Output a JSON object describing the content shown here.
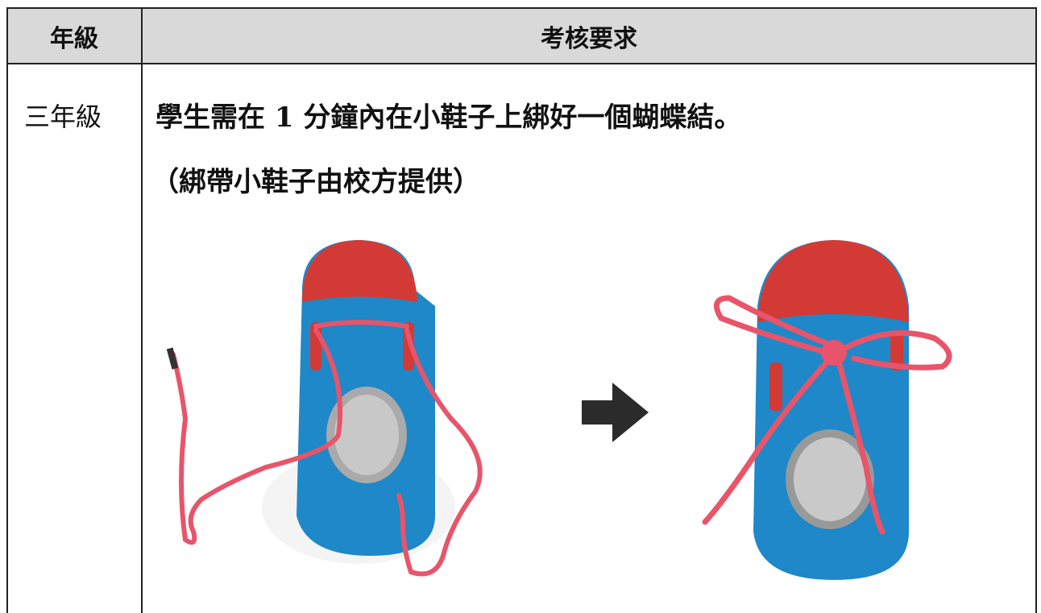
{
  "table": {
    "header": [
      "年級",
      "考核要求"
    ],
    "rows": [
      {
        "grade": "三年級",
        "requirement": [
          "學生需在 1 分鐘內在小鞋子上綁好一個蝴蝶結。",
          "（綁帶小鞋子由校方提供）"
        ]
      }
    ]
  }
}
